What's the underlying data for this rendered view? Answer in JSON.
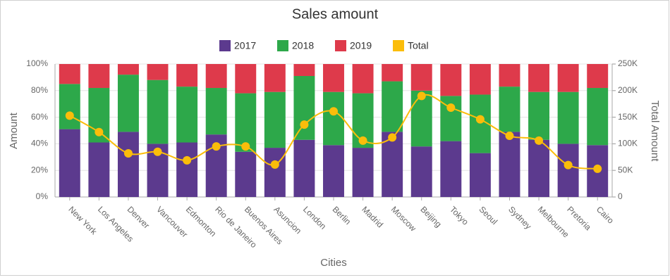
{
  "chart_data": {
    "type": "bar",
    "stacking": "percent",
    "title": "Sales amount",
    "x_label": "Cities",
    "y_label": "Amount",
    "y2_label": "Total Amount",
    "categories": [
      "New York",
      "Los Angeles",
      "Denver",
      "Vancouver",
      "Edmonton",
      "Rio de Janeiro",
      "Buenos Aires",
      "Asuncion",
      "London",
      "Berlin",
      "Madrid",
      "Moscow",
      "Beijing",
      "Tokyo",
      "Seoul",
      "Sydney",
      "Melbourne",
      "Pretoria",
      "Cairo"
    ],
    "series": [
      {
        "name": "2017",
        "color": "#5c3a8e",
        "values": [
          51,
          41,
          49,
          40,
          41,
          47,
          34,
          37,
          43,
          39,
          37,
          49,
          38,
          42,
          33,
          49,
          43,
          40,
          39
        ]
      },
      {
        "name": "2018",
        "color": "#2da84a",
        "values": [
          34,
          41,
          43,
          48,
          42,
          35,
          44,
          42,
          48,
          40,
          41,
          38,
          42,
          34,
          44,
          34,
          36,
          39,
          43
        ]
      },
      {
        "name": "2019",
        "color": "#de3a4b",
        "values": [
          15,
          18,
          8,
          12,
          17,
          18,
          22,
          21,
          9,
          21,
          22,
          13,
          20,
          24,
          23,
          17,
          21,
          21,
          18
        ]
      },
      {
        "name": "Total",
        "color": "#fbbd0a",
        "type": "line",
        "axis": "y2",
        "values": [
          153000,
          122000,
          82000,
          85000,
          69000,
          95000,
          95000,
          61000,
          136000,
          161000,
          106000,
          112000,
          190000,
          168000,
          146000,
          115000,
          106000,
          60000,
          53000
        ]
      }
    ],
    "ylim": [
      0,
      100
    ],
    "yticks": [
      {
        "value": 0,
        "label": "0%"
      },
      {
        "value": 20,
        "label": "20%"
      },
      {
        "value": 40,
        "label": "40%"
      },
      {
        "value": 60,
        "label": "60%"
      },
      {
        "value": 80,
        "label": "80%"
      },
      {
        "value": 100,
        "label": "100%"
      }
    ],
    "y2lim": [
      0,
      250000
    ],
    "y2ticks": [
      0,
      {
        "value": 50000,
        "label": "50K"
      },
      {
        "value": 100000,
        "label": "100K"
      },
      {
        "value": 150000,
        "label": "150K"
      },
      {
        "value": 200000,
        "label": "200K"
      },
      {
        "value": 250000,
        "label": "250K"
      }
    ],
    "grid": true,
    "legend": "top"
  }
}
